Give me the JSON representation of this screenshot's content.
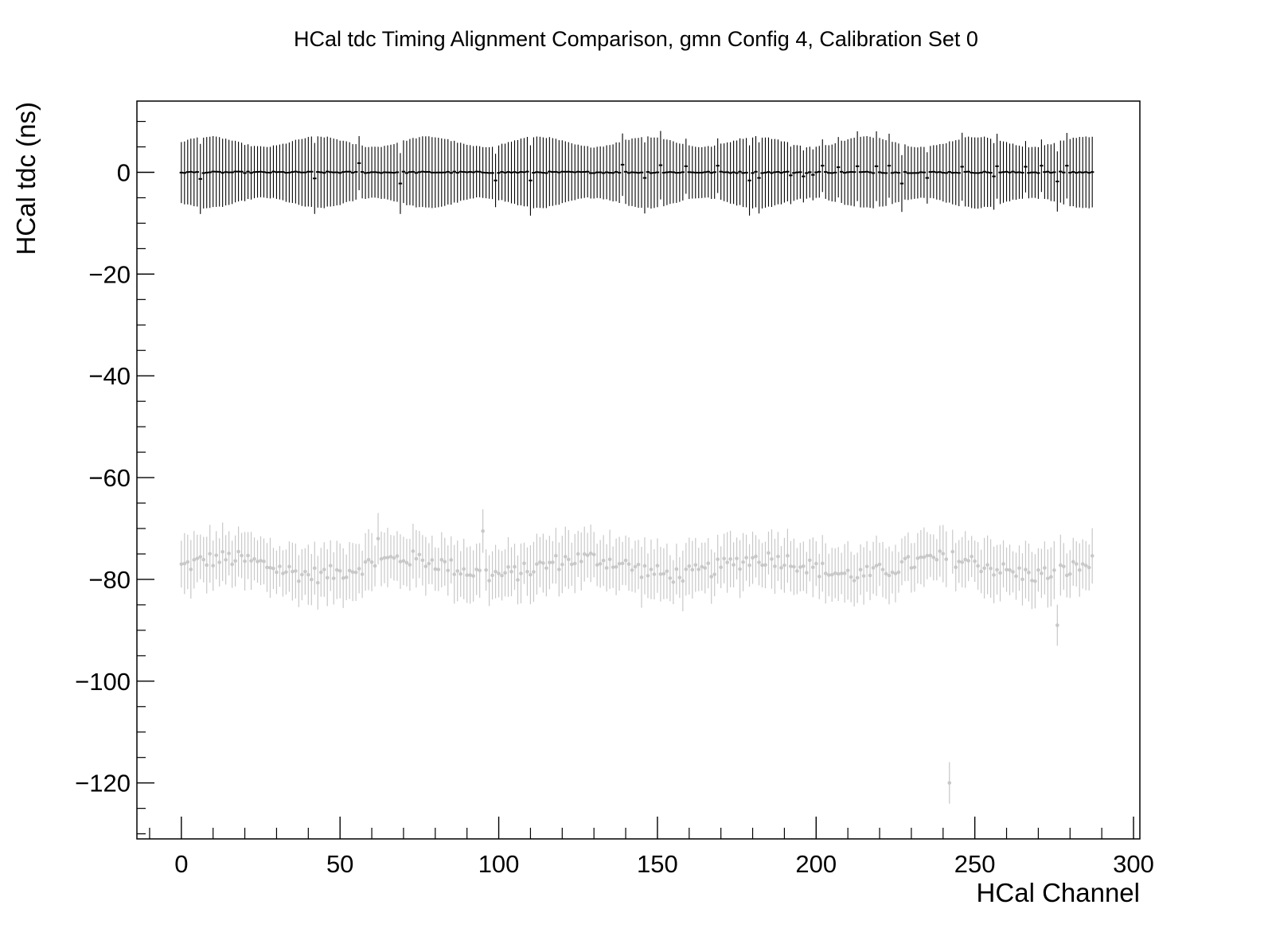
{
  "chart_data": {
    "type": "scatter",
    "title": "HCal tdc Timing Alignment Comparison, gmn Config 4, Calibration Set 0",
    "xlabel": "HCal Channel",
    "ylabel": "HCal tdc (ns)",
    "xlim": [
      -14,
      302
    ],
    "ylim": [
      -131,
      14
    ],
    "xticks": [
      0,
      50,
      100,
      150,
      200,
      250,
      300
    ],
    "xtick_labels": [
      "0",
      "50",
      "100",
      "150",
      "200",
      "250",
      "300"
    ],
    "yticks": [
      0,
      -20,
      -40,
      -60,
      -80,
      -100,
      -120
    ],
    "ytick_labels": [
      "0",
      "−20",
      "−40",
      "−60",
      "−80",
      "−100",
      "−120"
    ],
    "grid": false,
    "legend": "none",
    "series_colors": {
      "aligned": "#000000",
      "unaligned": "#c8c8c8"
    },
    "aligned": {
      "x_range": [
        0,
        287
      ],
      "baseline": 0,
      "error_half_width_range": [
        5,
        7
      ],
      "offsets": {
        "6": -1.3,
        "42": -1.2,
        "56": 1.8,
        "69": -2.2,
        "99": -1.6,
        "110": -1.6,
        "139": 1.5,
        "146": -1.1,
        "151": 1.4,
        "159": 1.2,
        "169": 1.3,
        "179": -1.6,
        "182": -1.1,
        "192": -0.6,
        "196": -0.8,
        "199": -0.5,
        "202": 1.3,
        "207": 1.0,
        "213": 1.2,
        "219": 1.2,
        "223": 1.3,
        "227": -2.2,
        "235": -1.1,
        "246": 1.1,
        "256": -0.8,
        "257": 1.2,
        "266": 1.1,
        "271": 1.3,
        "276": -1.8,
        "279": 1.3
      }
    },
    "unaligned": {
      "x_range": [
        0,
        287
      ],
      "typical_value": -77.5,
      "error_half_width_range": [
        4,
        6
      ],
      "notable_points": [
        {
          "x": 62,
          "y": -72
        },
        {
          "x": 95,
          "y": -70.5
        },
        {
          "x": 242,
          "y": -120
        },
        {
          "x": 276,
          "y": -89
        }
      ]
    }
  }
}
